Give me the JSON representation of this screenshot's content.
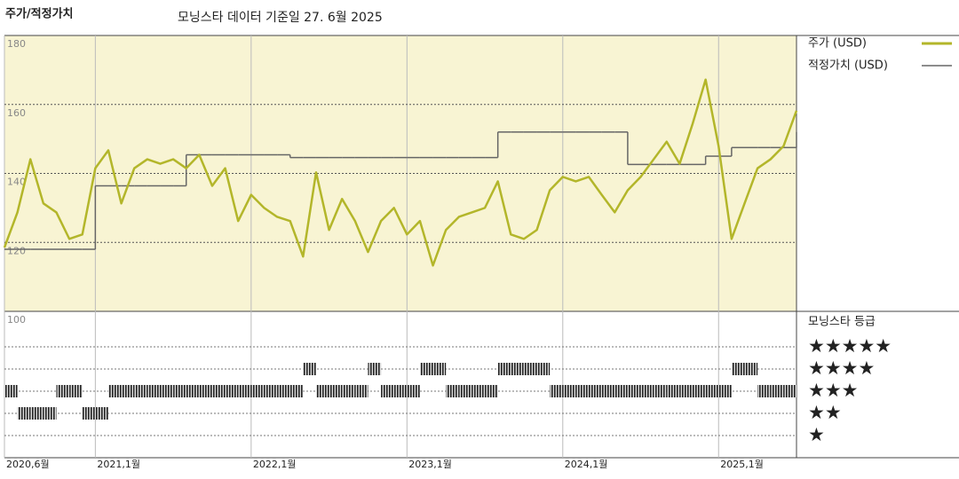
{
  "chart_data": {
    "type": "line",
    "title": "주가/적정가치",
    "subtitle": "모닝스타 데이터 기준일 27. 6월 2025",
    "x": [
      "2020-06",
      "2020-07",
      "2020-08",
      "2020-09",
      "2020-10",
      "2020-11",
      "2020-12",
      "2021-01",
      "2021-02",
      "2021-03",
      "2021-04",
      "2021-05",
      "2021-06",
      "2021-07",
      "2021-08",
      "2021-09",
      "2021-10",
      "2021-11",
      "2021-12",
      "2022-01",
      "2022-02",
      "2022-03",
      "2022-04",
      "2022-05",
      "2022-06",
      "2022-07",
      "2022-08",
      "2022-09",
      "2022-10",
      "2022-11",
      "2022-12",
      "2023-01",
      "2023-02",
      "2023-03",
      "2023-04",
      "2023-05",
      "2023-06",
      "2023-07",
      "2023-08",
      "2023-09",
      "2023-10",
      "2023-11",
      "2023-12",
      "2024-01",
      "2024-02",
      "2024-03",
      "2024-04",
      "2024-05",
      "2024-06",
      "2024-07",
      "2024-08",
      "2024-09",
      "2024-10",
      "2024-11",
      "2024-12",
      "2025-01",
      "2025-02",
      "2025-03",
      "2025-04",
      "2025-05",
      "2025-06",
      "2025-07"
    ],
    "xlim": [
      "2020-06",
      "2025-07"
    ],
    "xticks": [
      {
        "value": "2020-06",
        "label": "2020,6월"
      },
      {
        "value": "2021-01",
        "label": "2021,1월"
      },
      {
        "value": "2022-01",
        "label": "2022,1월"
      },
      {
        "value": "2023-01",
        "label": "2023,1월"
      },
      {
        "value": "2024-01",
        "label": "2024,1월"
      },
      {
        "value": "2025-01",
        "label": "2025,1월"
      }
    ],
    "ylim": [
      100,
      180
    ],
    "yticks": [
      100,
      120,
      140,
      160,
      180
    ],
    "series": [
      {
        "name": "주가 (USD)",
        "color": "#b3b62a",
        "values": [
          118.5,
          128.7,
          144.1,
          131.3,
          128.7,
          121,
          122.3,
          141.5,
          146.7,
          131.3,
          141.5,
          144.1,
          142.8,
          144.1,
          141.5,
          145.4,
          136.4,
          141.5,
          126.2,
          133.8,
          130,
          127.4,
          126.2,
          115.9,
          140.3,
          123.6,
          132.6,
          126.2,
          117.2,
          126.2,
          130,
          122.3,
          126.2,
          113.3,
          123.6,
          127.4,
          128.7,
          130,
          137.7,
          122.3,
          121,
          123.6,
          135.1,
          139,
          137.7,
          139,
          133.8,
          128.7,
          135.1,
          139,
          144.1,
          149.2,
          142.8,
          154.4,
          167.2,
          147.9,
          121,
          131.3,
          141.5,
          144.1,
          147.9,
          158.2
        ]
      },
      {
        "name": "적정가치 (USD)",
        "color": "#666666",
        "values": [
          118,
          118,
          118,
          118,
          118,
          118,
          118,
          136.4,
          136.4,
          136.4,
          136.4,
          136.4,
          136.4,
          136.4,
          145.4,
          145.4,
          145.4,
          145.4,
          145.4,
          145.4,
          145.4,
          145.4,
          144.6,
          144.6,
          144.6,
          144.6,
          144.6,
          144.6,
          144.6,
          144.6,
          144.6,
          144.6,
          144.6,
          144.6,
          144.6,
          144.6,
          144.6,
          144.6,
          152,
          152,
          152,
          152,
          152,
          152,
          152,
          152,
          152,
          152,
          142.6,
          142.6,
          142.6,
          142.6,
          142.6,
          142.6,
          145,
          145,
          147.5,
          147.5,
          147.5,
          147.5,
          147.5,
          152
        ]
      }
    ],
    "rating": {
      "name": "모닝스타 등급",
      "color": "#333333",
      "levels": [
        1,
        2,
        3,
        4,
        5
      ],
      "level_labels": [
        "★",
        "★★",
        "★★★",
        "★★★★",
        "★★★★★"
      ],
      "values": [
        3,
        2,
        2,
        2,
        3,
        3,
        2,
        2,
        3,
        3,
        3,
        3,
        3,
        3,
        3,
        3,
        3,
        3,
        3,
        3,
        3,
        3,
        3,
        4,
        3,
        3,
        3,
        3,
        4,
        3,
        3,
        3,
        4,
        4,
        3,
        3,
        3,
        3,
        4,
        4,
        4,
        4,
        3,
        3,
        3,
        3,
        3,
        3,
        3,
        3,
        3,
        3,
        3,
        3,
        3,
        3,
        4,
        4,
        3,
        3,
        3,
        3
      ]
    },
    "grid": true
  }
}
